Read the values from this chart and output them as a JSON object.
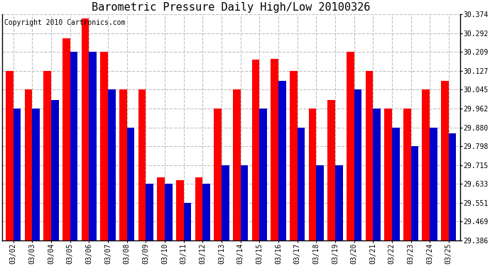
{
  "title": "Barometric Pressure Daily High/Low 20100326",
  "copyright": "Copyright 2010 Cartronics.com",
  "dates": [
    "03/02",
    "03/03",
    "03/04",
    "03/05",
    "03/06",
    "03/07",
    "03/08",
    "03/09",
    "03/10",
    "03/11",
    "03/12",
    "03/13",
    "03/14",
    "03/15",
    "03/16",
    "03/17",
    "03/18",
    "03/19",
    "03/20",
    "03/21",
    "03/22",
    "03/23",
    "03/24",
    "03/25"
  ],
  "highs": [
    30.127,
    30.045,
    30.127,
    30.27,
    30.356,
    30.209,
    30.045,
    30.045,
    29.66,
    29.65,
    29.66,
    29.962,
    30.045,
    30.175,
    30.18,
    30.127,
    29.962,
    30.0,
    30.209,
    30.127,
    29.962,
    29.962,
    30.045,
    30.082
  ],
  "lows": [
    29.962,
    29.962,
    30.0,
    30.209,
    30.209,
    30.045,
    29.88,
    29.633,
    29.633,
    29.551,
    29.633,
    29.715,
    29.715,
    29.962,
    30.082,
    29.88,
    29.715,
    29.715,
    30.045,
    29.962,
    29.88,
    29.798,
    29.88,
    29.855
  ],
  "high_color": "#ff0000",
  "low_color": "#0000cc",
  "background_color": "#ffffff",
  "grid_color": "#c0c0c0",
  "yticks": [
    29.386,
    29.469,
    29.551,
    29.633,
    29.715,
    29.798,
    29.88,
    29.962,
    30.045,
    30.127,
    30.209,
    30.292,
    30.374
  ],
  "ylim": [
    29.386,
    30.374
  ],
  "title_fontsize": 11,
  "copyright_fontsize": 7,
  "bar_width": 0.4
}
